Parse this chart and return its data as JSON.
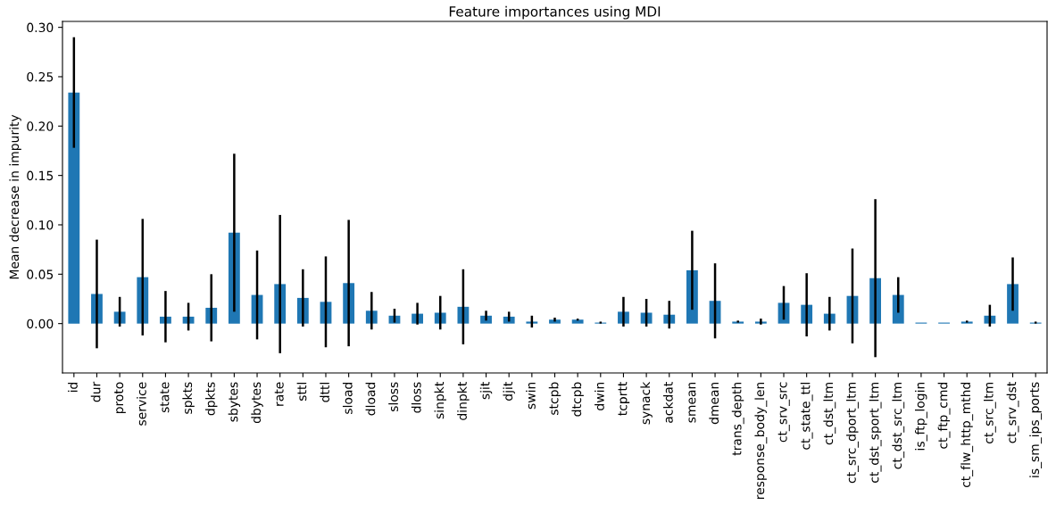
{
  "chart_data": {
    "type": "bar",
    "title": "Feature importances using MDI",
    "ylabel": "Mean decrease in impurity",
    "categories": [
      "id",
      "dur",
      "proto",
      "service",
      "state",
      "spkts",
      "dpkts",
      "sbytes",
      "dbytes",
      "rate",
      "sttl",
      "dttl",
      "sload",
      "dload",
      "sloss",
      "dloss",
      "sinpkt",
      "dinpkt",
      "sjit",
      "djit",
      "swin",
      "stcpb",
      "dtcpb",
      "dwin",
      "tcprtt",
      "synack",
      "ackdat",
      "smean",
      "dmean",
      "trans_depth",
      "response_body_len",
      "ct_srv_src",
      "ct_state_ttl",
      "ct_dst_ltm",
      "ct_src_dport_ltm",
      "ct_dst_sport_ltm",
      "ct_dst_src_ltm",
      "is_ftp_login",
      "ct_ftp_cmd",
      "ct_flw_http_mthd",
      "ct_src_ltm",
      "ct_srv_dst",
      "is_sm_ips_ports"
    ],
    "values": [
      0.234,
      0.03,
      0.012,
      0.047,
      0.007,
      0.007,
      0.016,
      0.092,
      0.029,
      0.04,
      0.026,
      0.022,
      0.041,
      0.013,
      0.008,
      0.01,
      0.011,
      0.017,
      0.008,
      0.007,
      0.002,
      0.004,
      0.004,
      0.001,
      0.012,
      0.011,
      0.009,
      0.054,
      0.023,
      0.002,
      0.002,
      0.021,
      0.019,
      0.01,
      0.028,
      0.046,
      0.029,
      0.001,
      0.001,
      0.002,
      0.008,
      0.04,
      0.001
    ],
    "errors": [
      0.056,
      0.055,
      0.015,
      0.059,
      0.026,
      0.014,
      0.034,
      0.08,
      0.045,
      0.07,
      0.029,
      0.046,
      0.064,
      0.019,
      0.007,
      0.011,
      0.017,
      0.038,
      0.005,
      0.005,
      0.006,
      0.002,
      0.001,
      0.001,
      0.015,
      0.014,
      0.014,
      0.04,
      0.038,
      0.001,
      0.003,
      0.017,
      0.032,
      0.017,
      0.048,
      0.08,
      0.018,
      null,
      null,
      0.001,
      0.011,
      0.027,
      0.001
    ],
    "color": "#1f77b4",
    "ylim": [
      -0.05,
      0.306
    ],
    "yticks": [
      {
        "value": 0.0,
        "label": "0.00"
      },
      {
        "value": 0.05,
        "label": "0.05"
      },
      {
        "value": 0.1,
        "label": "0.10"
      },
      {
        "value": 0.15,
        "label": "0.15"
      },
      {
        "value": 0.2,
        "label": "0.20"
      },
      {
        "value": 0.25,
        "label": "0.25"
      },
      {
        "value": 0.3,
        "label": "0.30"
      }
    ],
    "grid": false
  }
}
